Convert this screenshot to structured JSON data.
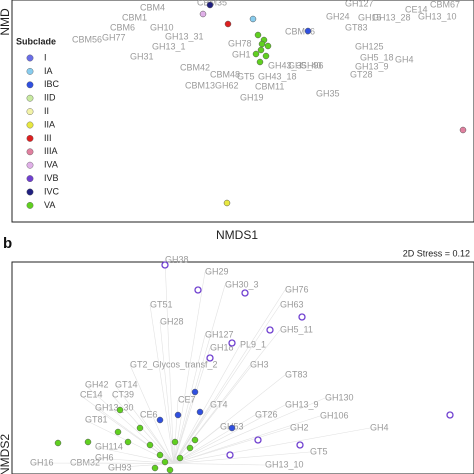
{
  "chart_data": [
    {
      "type": "scatter",
      "x_label": "NMDS1",
      "y_label": "NMD",
      "legend_title": "Subclade",
      "legend": "left",
      "xlim": [
        0,
        462
      ],
      "ylim": [
        0,
        222
      ],
      "series": [
        {
          "name": "I",
          "color": "#6a6ee8",
          "filled": true,
          "x": [],
          "values": []
        },
        {
          "name": "IA",
          "color": "#88ccee",
          "filled": true,
          "x": [
            241
          ],
          "values": [
            203
          ]
        },
        {
          "name": "IBC",
          "color": "#3050e0",
          "filled": true,
          "x": [
            296
          ],
          "values": [
            191
          ]
        },
        {
          "name": "IID",
          "color": "#c8eaa0",
          "filled": true,
          "x": [],
          "values": []
        },
        {
          "name": "II",
          "color": "#f3f3a8",
          "filled": true,
          "x": [],
          "values": []
        },
        {
          "name": "IIA",
          "color": "#e8e840",
          "filled": true,
          "x": [
            215
          ],
          "values": [
            19
          ]
        },
        {
          "name": "III",
          "color": "#dd2020",
          "filled": true,
          "x": [
            216
          ],
          "values": [
            198
          ]
        },
        {
          "name": "IIIA",
          "color": "#e0809f",
          "filled": true,
          "x": [
            451
          ],
          "values": [
            92
          ]
        },
        {
          "name": "IVA",
          "color": "#e0b0e8",
          "filled": true,
          "x": [
            191
          ],
          "values": [
            208
          ]
        },
        {
          "name": "IVB",
          "color": "#7040d0",
          "filled": true,
          "x": [],
          "values": []
        },
        {
          "name": "IVC",
          "color": "#202080",
          "filled": true,
          "x": [
            198
          ],
          "values": [
            217
          ]
        },
        {
          "name": "VA",
          "color": "#60d020",
          "filled": true,
          "x": [
            246,
            252,
            256,
            249,
            244,
            254,
            248,
            250
          ],
          "values": [
            187,
            182,
            176,
            172,
            168,
            166,
            160,
            178
          ]
        }
      ],
      "annotations": [
        {
          "text": "CBM4",
          "x": 128,
          "y": 214
        },
        {
          "text": "CBM35",
          "x": 185,
          "y": 219
        },
        {
          "text": "CBM1",
          "x": 110,
          "y": 204
        },
        {
          "text": "CBM6",
          "x": 98,
          "y": 194
        },
        {
          "text": "GH10",
          "x": 138,
          "y": 194
        },
        {
          "text": "CBM56",
          "x": 60,
          "y": 182
        },
        {
          "text": "GH77",
          "x": 90,
          "y": 184
        },
        {
          "text": "GH13_31",
          "x": 153,
          "y": 185
        },
        {
          "text": "GH13_1",
          "x": 140,
          "y": 175
        },
        {
          "text": "GH31",
          "x": 118,
          "y": 165
        },
        {
          "text": "GH78",
          "x": 216,
          "y": 178
        },
        {
          "text": "GH1",
          "x": 220,
          "y": 167
        },
        {
          "text": "CBM42",
          "x": 168,
          "y": 154
        },
        {
          "text": "CBM48",
          "x": 198,
          "y": 147
        },
        {
          "text": "GT5",
          "x": 225,
          "y": 145
        },
        {
          "text": "GH43_3",
          "x": 256,
          "y": 156
        },
        {
          "text": "GH43_18",
          "x": 246,
          "y": 145
        },
        {
          "text": "CBM13",
          "x": 173,
          "y": 136
        },
        {
          "text": "GH62",
          "x": 203,
          "y": 136
        },
        {
          "text": "CBM11",
          "x": 243,
          "y": 135
        },
        {
          "text": "GH19",
          "x": 228,
          "y": 124
        },
        {
          "text": "GH35",
          "x": 304,
          "y": 128
        },
        {
          "text": "CBM66",
          "x": 273,
          "y": 190
        },
        {
          "text": "GH5_40",
          "x": 276,
          "y": 156
        },
        {
          "text": "GH96",
          "x": 288,
          "y": 156
        },
        {
          "text": "GT83",
          "x": 333,
          "y": 194
        },
        {
          "text": "GH13_9",
          "x": 343,
          "y": 155
        },
        {
          "text": "GT28",
          "x": 338,
          "y": 147
        },
        {
          "text": "GH125",
          "x": 343,
          "y": 175
        },
        {
          "text": "GH5_18",
          "x": 348,
          "y": 164
        },
        {
          "text": "GH4",
          "x": 383,
          "y": 162
        },
        {
          "text": "GH15",
          "x": 346,
          "y": 204
        },
        {
          "text": "GH13_28",
          "x": 360,
          "y": 204
        },
        {
          "text": "GH13_10",
          "x": 406,
          "y": 205
        },
        {
          "text": "CE14",
          "x": 393,
          "y": 212
        },
        {
          "text": "CBM67",
          "x": 418,
          "y": 217
        },
        {
          "text": "GH127",
          "x": 333,
          "y": 218
        },
        {
          "text": "GH24",
          "x": 314,
          "y": 205
        }
      ]
    },
    {
      "type": "scatter",
      "panel_label": "b",
      "stress": "2D Stress = 0.12",
      "y_label": "NMDS2",
      "xlim": [
        0,
        462
      ],
      "ylim": [
        0,
        212
      ],
      "series": [
        {
          "color": "#7040d0",
          "filled": false,
          "x": [
            153,
            186,
            233,
            258,
            290,
            220,
            438,
            198,
            246,
            288,
            218
          ],
          "values": [
            209,
            184,
            181,
            144,
            157,
            131,
            59,
            116,
            34,
            29,
            19
          ]
        },
        {
          "color": "#3050e0",
          "filled": true,
          "x": [
            183,
            166,
            188,
            220,
            148
          ],
          "values": [
            82,
            59,
            62,
            46,
            54
          ]
        },
        {
          "color": "#60d020",
          "filled": true,
          "x": [
            108,
            106,
            116,
            128,
            138,
            148,
            153,
            158,
            168,
            46,
            76,
            178,
            143,
            163,
            183
          ],
          "values": [
            64,
            42,
            32,
            46,
            29,
            19,
            12,
            4,
            16,
            31,
            32,
            26,
            6,
            32,
            34
          ]
        }
      ],
      "annotations": [
        {
          "text": "GH38",
          "x": 153,
          "y": 214
        },
        {
          "text": "GH29",
          "x": 193,
          "y": 202
        },
        {
          "text": "GH30_3",
          "x": 213,
          "y": 189
        },
        {
          "text": "GH76",
          "x": 273,
          "y": 184
        },
        {
          "text": "GT51",
          "x": 138,
          "y": 169
        },
        {
          "text": "GH63",
          "x": 268,
          "y": 169
        },
        {
          "text": "GH28",
          "x": 148,
          "y": 152
        },
        {
          "text": "GH127",
          "x": 193,
          "y": 139
        },
        {
          "text": "GH5_11",
          "x": 268,
          "y": 144
        },
        {
          "text": "GH18",
          "x": 198,
          "y": 126
        },
        {
          "text": "PL9_1",
          "x": 228,
          "y": 129
        },
        {
          "text": "GT2_Glycos_transf_2",
          "x": 118,
          "y": 109
        },
        {
          "text": "GH3",
          "x": 238,
          "y": 109
        },
        {
          "text": "GT83",
          "x": 273,
          "y": 99
        },
        {
          "text": "GH42",
          "x": 73,
          "y": 89
        },
        {
          "text": "GT14",
          "x": 103,
          "y": 89
        },
        {
          "text": "CE14",
          "x": 68,
          "y": 79
        },
        {
          "text": "CT39",
          "x": 100,
          "y": 79
        },
        {
          "text": "GH13_30",
          "x": 83,
          "y": 66
        },
        {
          "text": "CE7",
          "x": 166,
          "y": 74
        },
        {
          "text": "GT4",
          "x": 198,
          "y": 69
        },
        {
          "text": "GH130",
          "x": 313,
          "y": 76
        },
        {
          "text": "GH13_9",
          "x": 273,
          "y": 69
        },
        {
          "text": "GT81",
          "x": 73,
          "y": 54
        },
        {
          "text": "CE6",
          "x": 128,
          "y": 59
        },
        {
          "text": "GT26",
          "x": 243,
          "y": 59
        },
        {
          "text": "GH106",
          "x": 308,
          "y": 58
        },
        {
          "text": "GH53",
          "x": 208,
          "y": 47
        },
        {
          "text": "GH2",
          "x": 278,
          "y": 46
        },
        {
          "text": "GH4",
          "x": 358,
          "y": 46
        },
        {
          "text": "GH114",
          "x": 83,
          "y": 27
        },
        {
          "text": "GH6",
          "x": 83,
          "y": 16
        },
        {
          "text": "CBM32",
          "x": 58,
          "y": 11
        },
        {
          "text": "GH16",
          "x": 18,
          "y": 11
        },
        {
          "text": "GH93",
          "x": 96,
          "y": 6
        },
        {
          "text": "GT5",
          "x": 298,
          "y": 22
        },
        {
          "text": "GH13_10",
          "x": 253,
          "y": 9
        }
      ]
    }
  ]
}
